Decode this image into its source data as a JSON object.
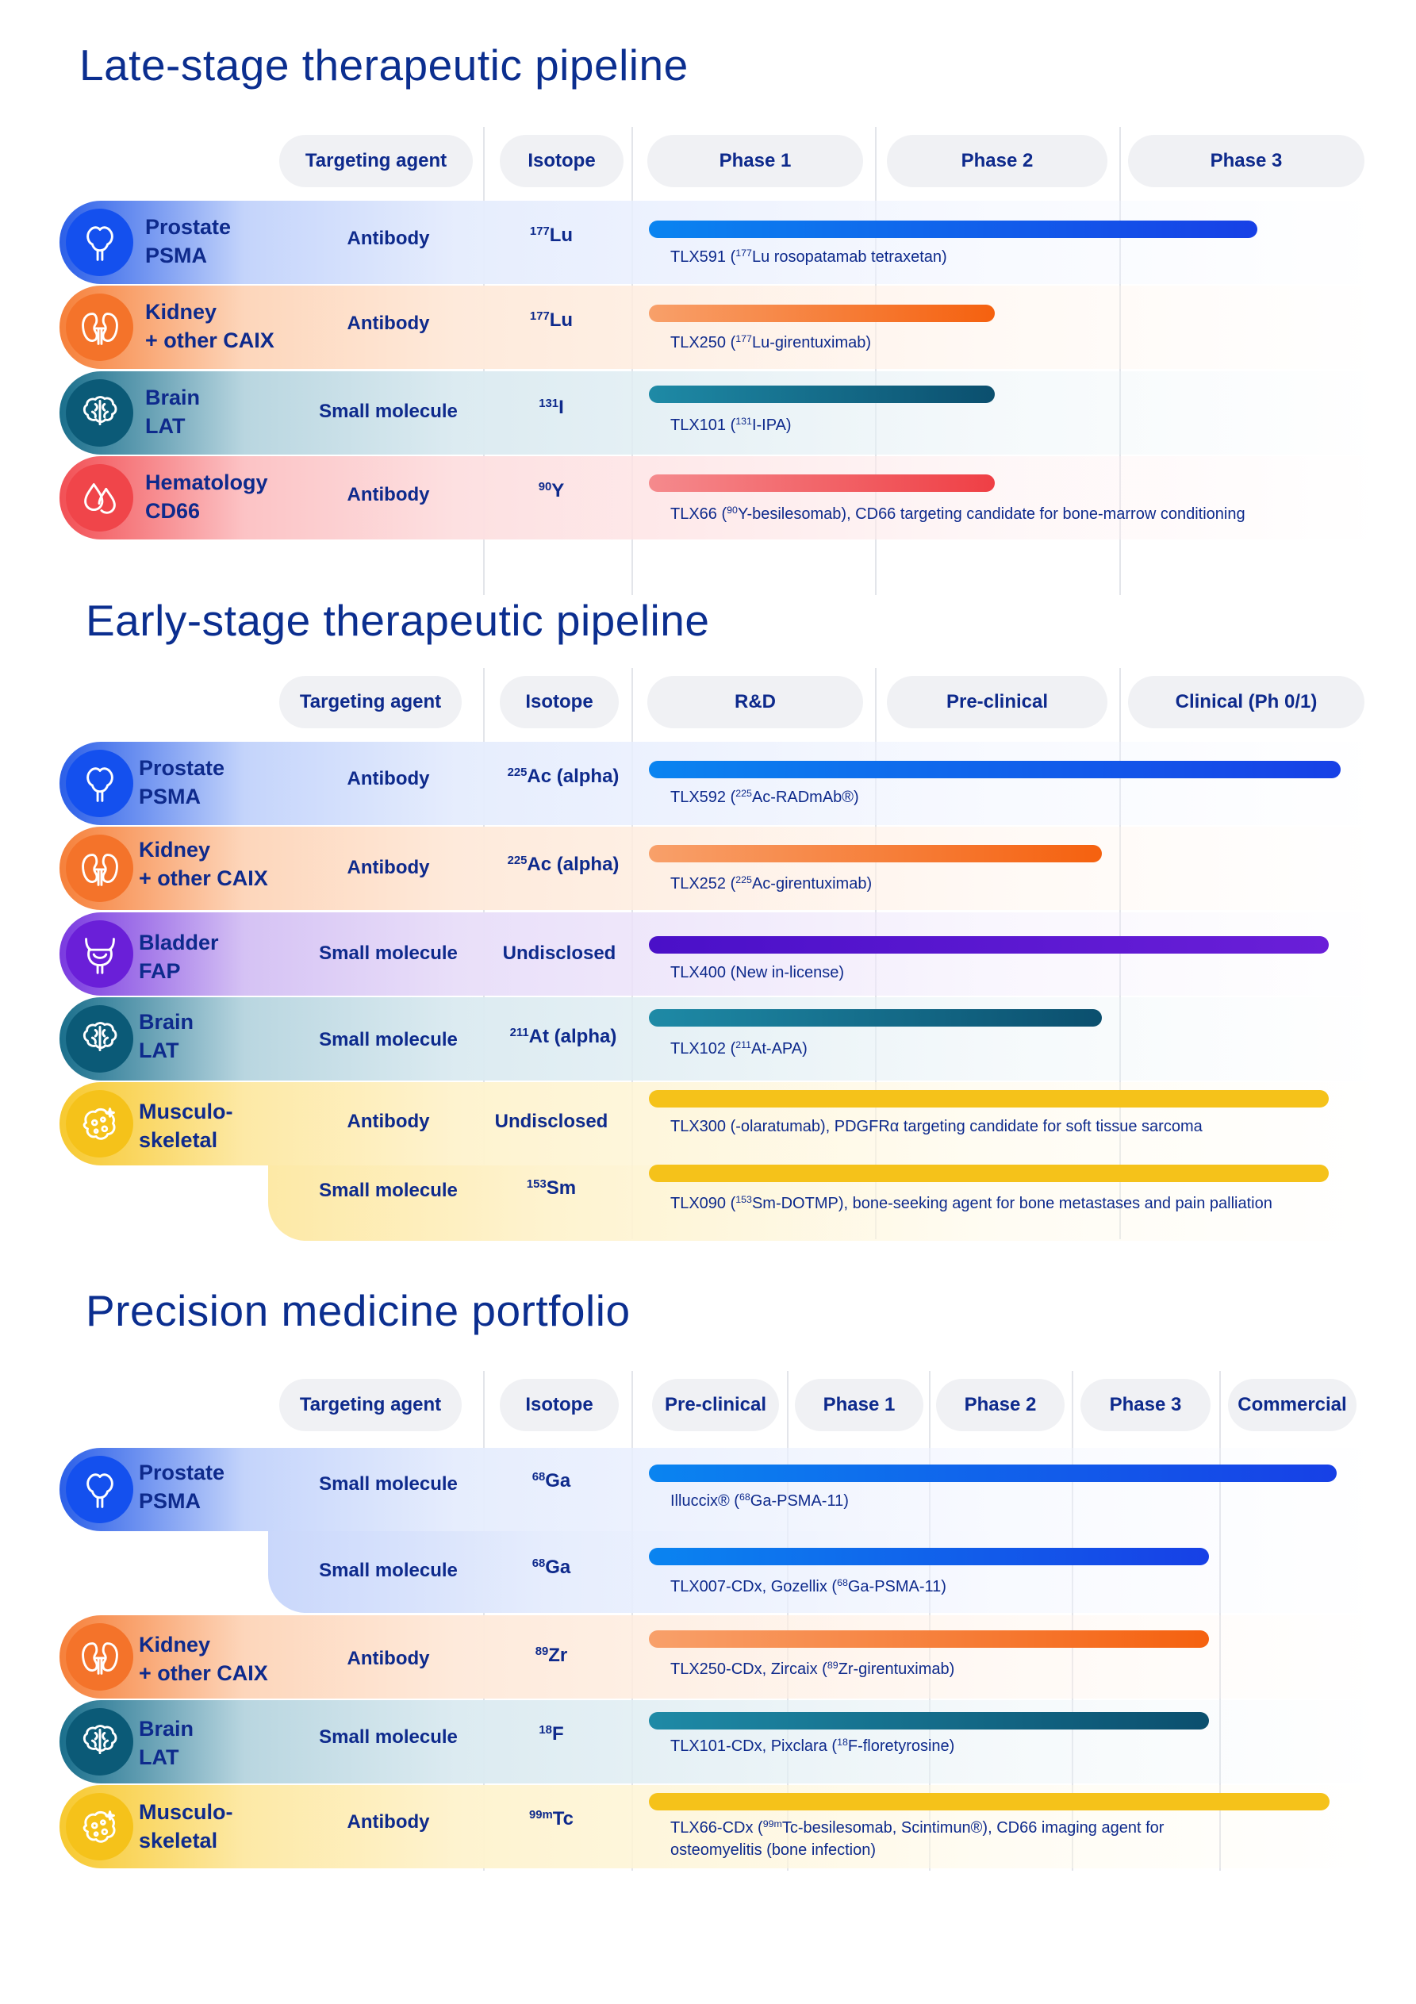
{
  "colors": {
    "prostate": "#1c56f0",
    "kidney": "#f7752b",
    "brain": "#0b5c7a",
    "hematology": "#f04a4e",
    "bladder": "#6a1fd8",
    "musculo": "#f5c21a",
    "title": "#0b2e8f"
  },
  "icons": {
    "prostate": "prostate-icon",
    "kidney": "kidney-icon",
    "brain": "brain-icon",
    "blood": "blood-drop-icon",
    "bladder": "bladder-icon",
    "bone": "bone-cell-icon"
  },
  "late": {
    "title": "Late-stage therapeutic pipeline",
    "headers": {
      "agent": "Targeting agent",
      "isotope": "Isotope",
      "p1": "Phase 1",
      "p2": "Phase 2",
      "p3": "Phase 3"
    },
    "rows": [
      {
        "l1": "Prostate",
        "l2": "PSMA",
        "agent": "Antibody",
        "iso_sup": "177",
        "iso_sym": "Lu",
        "cap_a": "TLX591 (",
        "cap_sup": "177",
        "cap_b": "Lu rosopatamab tetraxetan)"
      },
      {
        "l1": "Kidney",
        "l2": "+ other CAIX",
        "agent": "Antibody",
        "iso_sup": "177",
        "iso_sym": "Lu",
        "cap_a": "TLX250 (",
        "cap_sup": "177",
        "cap_b": "Lu-girentuximab)"
      },
      {
        "l1": "Brain",
        "l2": "LAT",
        "agent": "Small molecule",
        "iso_sup": "131",
        "iso_sym": "I",
        "cap_a": "TLX101 (",
        "cap_sup": "131",
        "cap_b": "I-IPA)"
      },
      {
        "l1": "Hematology",
        "l2": "CD66",
        "agent": "Antibody",
        "iso_sup": "90",
        "iso_sym": "Y",
        "cap_a": "TLX66 (",
        "cap_sup": "90",
        "cap_b": "Y-besilesomab), CD66 targeting candidate for bone-marrow conditioning"
      }
    ]
  },
  "early": {
    "title": "Early-stage therapeutic pipeline",
    "headers": {
      "agent": "Targeting agent",
      "isotope": "Isotope",
      "rd": "R&D",
      "pre": "Pre-clinical",
      "clin": "Clinical (Ph 0/1)"
    },
    "rows": [
      {
        "l1": "Prostate",
        "l2": "PSMA",
        "agent": "Antibody",
        "iso_sup": "225",
        "iso_sym": "Ac (alpha)",
        "cap_a": "TLX592 (",
        "cap_sup": "225",
        "cap_b": "Ac-RADmAb®)"
      },
      {
        "l1": "Kidney",
        "l2": "+ other CAIX",
        "agent": "Antibody",
        "iso_sup": "225",
        "iso_sym": "Ac (alpha)",
        "cap_a": "TLX252 (",
        "cap_sup": "225",
        "cap_b": "Ac-girentuximab)"
      },
      {
        "l1": "Bladder",
        "l2": "FAP",
        "agent": "Small molecule",
        "iso_text": "Undisclosed",
        "cap_text": "TLX400 (New in-license)"
      },
      {
        "l1": "Brain",
        "l2": "LAT",
        "agent": "Small molecule",
        "iso_sup": "211",
        "iso_sym": "At (alpha)",
        "cap_a": "TLX102 (",
        "cap_sup": "211",
        "cap_b": "At-APA)"
      },
      {
        "l1": "Musculo-",
        "l2": "skeletal",
        "agent": "Antibody",
        "iso_text": "Undisclosed",
        "cap_text": "TLX300 (-olaratumab), PDGFRα targeting candidate for soft tissue sarcoma"
      },
      {
        "agent": "Small molecule",
        "iso_sup": "153",
        "iso_sym": "Sm",
        "cap_a": "TLX090 (",
        "cap_sup": "153",
        "cap_b": "Sm-DOTMP), bone-seeking agent for bone metastases and pain palliation"
      }
    ]
  },
  "precision": {
    "title": "Precision medicine portfolio",
    "headers": {
      "agent": "Targeting agent",
      "isotope": "Isotope",
      "pre": "Pre-clinical",
      "p1": "Phase 1",
      "p2": "Phase 2",
      "p3": "Phase 3",
      "com": "Commercial"
    },
    "rows": [
      {
        "l1": "Prostate",
        "l2": "PSMA",
        "agent": "Small molecule",
        "iso_sup": "68",
        "iso_sym": "Ga",
        "cap_a": "Illuccix® (",
        "cap_sup": "68",
        "cap_b": "Ga-PSMA-11)"
      },
      {
        "agent": "Small molecule",
        "iso_sup": "68",
        "iso_sym": "Ga",
        "cap_a": "TLX007-CDx, Gozellix (",
        "cap_sup": "68",
        "cap_b": "Ga-PSMA-11)"
      },
      {
        "l1": "Kidney",
        "l2": "+ other CAIX",
        "agent": "Antibody",
        "iso_sup": "89",
        "iso_sym": "Zr",
        "cap_a": "TLX250-CDx, Zircaix (",
        "cap_sup": "89",
        "cap_b": "Zr-girentuximab)"
      },
      {
        "l1": "Brain",
        "l2": "LAT",
        "agent": "Small molecule",
        "iso_sup": "18",
        "iso_sym": "F",
        "cap_a": "TLX101-CDx, Pixclara (",
        "cap_sup": "18",
        "cap_b": "F-floretyrosine)"
      },
      {
        "l1": "Musculo-",
        "l2": "skeletal",
        "agent": "Antibody",
        "iso_sup": "99m",
        "iso_sym": "Tc",
        "cap_a": "TLX66-CDx (",
        "cap_sup": "99m",
        "cap_b": "Tc-besilesomab, Scintimun®), CD66 imaging agent for",
        "cap_line2": "osteomyelitis (bone infection)"
      }
    ]
  },
  "chart_data": [
    {
      "type": "bar",
      "title": "Late-stage therapeutic pipeline",
      "stages": [
        "Phase 1",
        "Phase 2",
        "Phase 3"
      ],
      "xlim": [
        0,
        3
      ],
      "series": [
        {
          "name": "TLX591",
          "indication": "Prostate PSMA",
          "value": 2.55
        },
        {
          "name": "TLX250",
          "indication": "Kidney + other CAIX",
          "value": 1.45
        },
        {
          "name": "TLX101",
          "indication": "Brain LAT",
          "value": 1.45
        },
        {
          "name": "TLX66",
          "indication": "Hematology CD66",
          "value": 1.45
        }
      ]
    },
    {
      "type": "bar",
      "title": "Early-stage therapeutic pipeline",
      "stages": [
        "R&D",
        "Pre-clinical",
        "Clinical (Ph 0/1)"
      ],
      "xlim": [
        0,
        3
      ],
      "series": [
        {
          "name": "TLX592",
          "indication": "Prostate PSMA",
          "value": 2.9
        },
        {
          "name": "TLX252",
          "indication": "Kidney + other CAIX",
          "value": 1.9
        },
        {
          "name": "TLX400",
          "indication": "Bladder FAP",
          "value": 2.85
        },
        {
          "name": "TLX102",
          "indication": "Brain LAT",
          "value": 1.9
        },
        {
          "name": "TLX300",
          "indication": "Musculoskeletal",
          "value": 2.85
        },
        {
          "name": "TLX090",
          "indication": "Musculoskeletal",
          "value": 2.85
        }
      ]
    },
    {
      "type": "bar",
      "title": "Precision medicine portfolio",
      "stages": [
        "Pre-clinical",
        "Phase 1",
        "Phase 2",
        "Phase 3",
        "Commercial"
      ],
      "xlim": [
        0,
        5
      ],
      "series": [
        {
          "name": "Illuccix",
          "indication": "Prostate PSMA",
          "value": 4.85
        },
        {
          "name": "TLX007-CDx",
          "indication": "Prostate PSMA",
          "value": 3.95
        },
        {
          "name": "TLX250-CDx",
          "indication": "Kidney + other CAIX",
          "value": 3.95
        },
        {
          "name": "TLX101-CDx",
          "indication": "Brain LAT",
          "value": 3.95
        },
        {
          "name": "TLX66-CDx",
          "indication": "Musculoskeletal",
          "value": 4.8
        }
      ]
    }
  ]
}
